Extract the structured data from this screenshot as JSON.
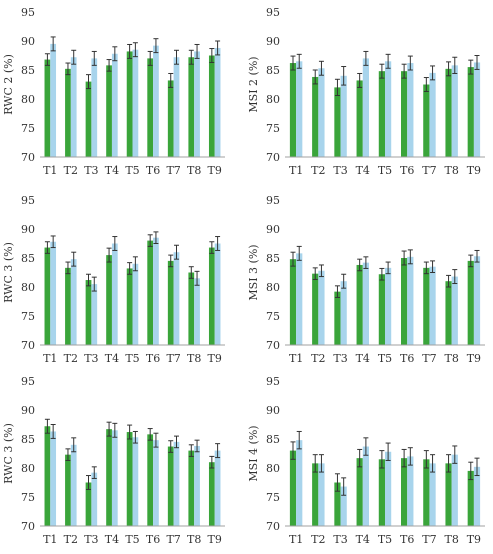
{
  "figure": {
    "colors": {
      "series_a": "#3aa53a",
      "series_b": "#a8d4ec",
      "axis": "#a0a0a0",
      "error": "#333333"
    }
  },
  "chart_data": [
    {
      "type": "bar",
      "ylabel": "RWC 2 (%)",
      "ylim": [
        70,
        95
      ],
      "yticks": [
        70,
        75,
        80,
        85,
        90,
        95
      ],
      "categories": [
        "T1",
        "T2",
        "T3",
        "T4",
        "T5",
        "T6",
        "T7",
        "T8",
        "T9"
      ],
      "grid": false,
      "series": [
        {
          "values": [
            86.8,
            85.2,
            83.0,
            85.8,
            88.2,
            87.0,
            83.2,
            87.2,
            87.5
          ],
          "errors": [
            1.0,
            1.0,
            1.2,
            1.0,
            1.2,
            1.2,
            1.2,
            1.2,
            1.2
          ]
        },
        {
          "values": [
            89.5,
            87.2,
            87.0,
            87.8,
            88.5,
            89.2,
            87.2,
            88.2,
            88.8
          ],
          "errors": [
            1.2,
            1.2,
            1.2,
            1.2,
            1.2,
            1.2,
            1.2,
            1.2,
            1.2
          ]
        }
      ]
    },
    {
      "type": "bar",
      "ylabel": "MSI 2 (%)",
      "ylim": [
        70,
        95
      ],
      "yticks": [
        70,
        75,
        80,
        85,
        90,
        95
      ],
      "categories": [
        "T1",
        "T2",
        "T3",
        "T4",
        "T5",
        "T6",
        "T7",
        "T8",
        "T9"
      ],
      "grid": false,
      "series": [
        {
          "values": [
            86.2,
            83.8,
            82.0,
            83.2,
            84.8,
            84.8,
            82.5,
            85.2,
            85.5
          ],
          "errors": [
            1.2,
            1.2,
            1.4,
            1.2,
            1.2,
            1.2,
            1.2,
            1.2,
            1.2
          ]
        },
        {
          "values": [
            86.5,
            85.3,
            84.0,
            87.0,
            86.5,
            86.2,
            84.5,
            85.8,
            86.3
          ],
          "errors": [
            1.2,
            1.2,
            1.6,
            1.2,
            1.2,
            1.2,
            1.2,
            1.4,
            1.2
          ]
        }
      ]
    },
    {
      "type": "bar",
      "ylabel": "RWC 3 (%)",
      "ylim": [
        70,
        95
      ],
      "yticks": [
        70,
        75,
        80,
        85,
        90,
        95
      ],
      "categories": [
        "T1",
        "T2",
        "T3",
        "T4",
        "T5",
        "T6",
        "T7",
        "T8",
        "T9"
      ],
      "grid": false,
      "series": [
        {
          "values": [
            86.8,
            83.3,
            81.2,
            85.5,
            83.2,
            88.0,
            84.5,
            82.5,
            86.8
          ],
          "errors": [
            1.0,
            1.0,
            1.0,
            1.2,
            1.0,
            1.0,
            1.0,
            1.0,
            1.0
          ]
        },
        {
          "values": [
            87.8,
            84.8,
            80.5,
            87.5,
            84.0,
            88.5,
            86.0,
            81.5,
            87.5
          ],
          "errors": [
            1.0,
            1.2,
            1.2,
            1.2,
            1.2,
            1.0,
            1.2,
            1.2,
            1.2
          ]
        }
      ]
    },
    {
      "type": "bar",
      "ylabel": "MSI 3 (%)",
      "ylim": [
        70,
        95
      ],
      "yticks": [
        70,
        75,
        80,
        85,
        90,
        95
      ],
      "categories": [
        "T1",
        "T2",
        "T3",
        "T4",
        "T5",
        "T6",
        "T7",
        "T8",
        "T9"
      ],
      "grid": false,
      "series": [
        {
          "values": [
            84.8,
            82.3,
            79.2,
            83.8,
            82.2,
            85.0,
            83.3,
            81.0,
            84.5
          ],
          "errors": [
            1.2,
            1.0,
            1.0,
            1.0,
            1.0,
            1.2,
            1.0,
            1.0,
            1.0
          ]
        },
        {
          "values": [
            85.8,
            82.8,
            81.0,
            84.2,
            83.3,
            85.2,
            83.5,
            81.8,
            85.3
          ],
          "errors": [
            1.2,
            1.0,
            1.2,
            1.0,
            1.0,
            1.2,
            1.0,
            1.2,
            1.0
          ]
        }
      ]
    },
    {
      "type": "bar",
      "ylabel": "RWC 3 (%)",
      "ylim": [
        70,
        95
      ],
      "yticks": [
        70,
        75,
        80,
        85,
        90,
        95
      ],
      "categories": [
        "T1",
        "T2",
        "T3",
        "T4",
        "T5",
        "T6",
        "T7",
        "T8",
        "T9"
      ],
      "grid": false,
      "series": [
        {
          "values": [
            87.2,
            82.3,
            77.5,
            86.7,
            86.2,
            85.8,
            83.7,
            83.0,
            81.0
          ],
          "errors": [
            1.2,
            1.0,
            1.2,
            1.2,
            1.2,
            1.0,
            1.0,
            1.0,
            1.0
          ]
        },
        {
          "values": [
            86.3,
            84.0,
            79.2,
            86.5,
            85.3,
            84.8,
            84.5,
            83.8,
            83.0
          ],
          "errors": [
            1.2,
            1.2,
            1.0,
            1.2,
            1.0,
            1.2,
            1.0,
            1.0,
            1.2
          ]
        }
      ]
    },
    {
      "type": "bar",
      "ylabel": "MSI 4 (%)",
      "ylim": [
        70,
        95
      ],
      "yticks": [
        70,
        75,
        80,
        85,
        90,
        95
      ],
      "categories": [
        "T1",
        "T2",
        "T3",
        "T4",
        "T5",
        "T6",
        "T7",
        "T8",
        "T9"
      ],
      "grid": false,
      "series": [
        {
          "values": [
            83.0,
            80.8,
            77.5,
            81.7,
            81.5,
            81.7,
            81.5,
            80.8,
            79.5
          ],
          "errors": [
            1.5,
            1.5,
            1.5,
            1.5,
            1.5,
            1.5,
            1.5,
            1.5,
            1.5
          ]
        },
        {
          "values": [
            84.8,
            80.8,
            76.8,
            83.7,
            82.8,
            82.0,
            80.8,
            82.3,
            80.2
          ],
          "errors": [
            1.5,
            1.5,
            1.5,
            1.5,
            1.5,
            1.5,
            1.5,
            1.5,
            1.5
          ]
        }
      ]
    }
  ]
}
